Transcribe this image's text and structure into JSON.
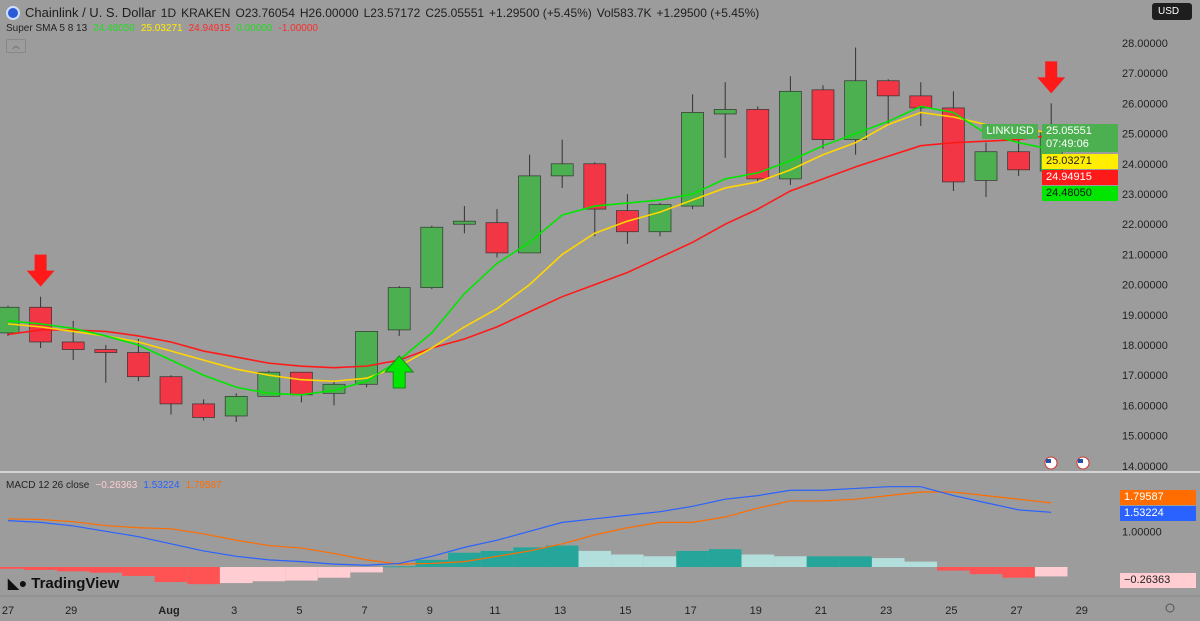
{
  "header": {
    "symbol": "Chainlink / U. S. Dollar",
    "interval": "1D",
    "exchange": "KRAKEN",
    "open": "O23.76054",
    "high": "H26.00000",
    "low": "L23.57172",
    "close": "C25.05551",
    "change": "+1.29500 (+5.45%)",
    "volume": "Vol583.7K",
    "change2": "+1.29500 (+5.45%)"
  },
  "indicator": {
    "name": "Super SMA 5 8 13",
    "values": [
      "24.48050",
      "25.03271",
      "24.94915",
      "0.00000",
      "-1.00000"
    ],
    "colors": [
      "#22dd22",
      "#ffee00",
      "#ff2a2a",
      "#22dd22",
      "#ff2a2a"
    ]
  },
  "macd_label": {
    "name": "MACD 12 26 close",
    "values": [
      "−0.26363",
      "1.53224",
      "1.79587"
    ],
    "colors": [
      "#ffcdd2",
      "#2962ff",
      "#ff6d00"
    ]
  },
  "currency_button": "USD",
  "price_tags": {
    "symbol": "LINKUSD",
    "last": "25.05551",
    "countdown": "07:49:06",
    "sma8": "25.03271",
    "sma13": "24.94915",
    "sma5": "24.48050",
    "macd_signal": "1.79587",
    "macd": "1.53224",
    "hist": "−0.26363"
  },
  "branding": "TradingView",
  "colors": {
    "up": "#4caf50",
    "down": "#f23645",
    "sma5": "#00e600",
    "sma8": "#ffd600",
    "sma13": "#ff1a1a",
    "macd": "#2962ff",
    "signal": "#ff6d00"
  },
  "chart_data": {
    "type": "candlestick",
    "price_axis": {
      "ticks": [
        "28.00000",
        "27.00000",
        "26.00000",
        "25.00000",
        "24.00000",
        "23.00000",
        "22.00000",
        "21.00000",
        "20.00000",
        "19.00000",
        "18.00000",
        "17.00000",
        "16.00000",
        "15.00000",
        "14.00000"
      ],
      "range": [
        14,
        28
      ]
    },
    "x_axis_labels": [
      "27",
      "29",
      "Aug",
      "3",
      "5",
      "7",
      "9",
      "11",
      "13",
      "15",
      "17",
      "19",
      "21",
      "23",
      "25",
      "27",
      "29"
    ],
    "dates": [
      "Jul 27",
      "Jul 28",
      "Jul 29",
      "Jul 30",
      "Jul 31",
      "Aug 1",
      "Aug 2",
      "Aug 3",
      "Aug 4",
      "Aug 5",
      "Aug 6",
      "Aug 7",
      "Aug 8",
      "Aug 9",
      "Aug 10",
      "Aug 11",
      "Aug 12",
      "Aug 13",
      "Aug 14",
      "Aug 15",
      "Aug 16",
      "Aug 17",
      "Aug 18",
      "Aug 19",
      "Aug 20",
      "Aug 21",
      "Aug 22",
      "Aug 23",
      "Aug 24",
      "Aug 25",
      "Aug 26",
      "Aug 27",
      "Aug 28"
    ],
    "ohlc": [
      [
        18.4,
        19.3,
        18.3,
        19.25
      ],
      [
        19.25,
        19.6,
        17.9,
        18.1
      ],
      [
        18.1,
        18.8,
        17.5,
        17.85
      ],
      [
        17.85,
        18.0,
        16.75,
        17.75
      ],
      [
        17.75,
        18.2,
        16.8,
        16.95
      ],
      [
        16.95,
        17.0,
        15.7,
        16.05
      ],
      [
        16.05,
        16.2,
        15.5,
        15.6
      ],
      [
        15.65,
        16.4,
        15.45,
        16.3
      ],
      [
        16.3,
        17.15,
        16.3,
        17.1
      ],
      [
        17.1,
        17.1,
        16.1,
        16.35
      ],
      [
        16.4,
        16.8,
        16.0,
        16.7
      ],
      [
        16.7,
        18.45,
        16.6,
        18.45
      ],
      [
        18.5,
        19.95,
        18.3,
        19.9
      ],
      [
        19.9,
        21.95,
        19.85,
        21.9
      ],
      [
        22.0,
        22.6,
        21.7,
        22.1
      ],
      [
        22.05,
        22.5,
        20.9,
        21.05
      ],
      [
        21.05,
        24.3,
        21.05,
        23.6
      ],
      [
        23.6,
        24.8,
        23.2,
        24.0
      ],
      [
        24.0,
        24.05,
        21.6,
        22.5
      ],
      [
        22.45,
        23.0,
        21.35,
        21.75
      ],
      [
        21.75,
        22.7,
        21.6,
        22.65
      ],
      [
        22.6,
        26.3,
        22.5,
        25.7
      ],
      [
        25.65,
        26.7,
        24.2,
        25.8
      ],
      [
        25.8,
        25.9,
        23.4,
        23.5
      ],
      [
        23.5,
        26.9,
        23.3,
        26.4
      ],
      [
        26.45,
        26.6,
        24.5,
        24.8
      ],
      [
        24.8,
        27.85,
        24.3,
        26.75
      ],
      [
        26.75,
        26.8,
        25.3,
        26.25
      ],
      [
        26.25,
        26.7,
        25.25,
        25.85
      ],
      [
        25.85,
        26.4,
        23.1,
        23.4
      ],
      [
        23.45,
        24.7,
        22.9,
        24.4
      ],
      [
        24.4,
        24.8,
        23.6,
        23.8
      ],
      [
        23.76054,
        26.0,
        23.57172,
        25.05551
      ]
    ],
    "sma5": [
      18.8,
      18.7,
      18.55,
      18.3,
      18.0,
      17.5,
      17.0,
      16.6,
      16.4,
      16.35,
      16.5,
      16.8,
      17.5,
      18.4,
      19.7,
      20.7,
      21.4,
      22.3,
      22.6,
      22.7,
      22.8,
      23.0,
      23.5,
      23.7,
      24.1,
      24.6,
      25.0,
      25.4,
      25.9,
      25.7,
      25.0,
      24.7,
      24.4805
    ],
    "sma8": [
      18.7,
      18.6,
      18.45,
      18.3,
      18.1,
      17.8,
      17.5,
      17.2,
      17.0,
      16.85,
      16.8,
      16.9,
      17.3,
      17.9,
      18.6,
      19.2,
      20.0,
      21.0,
      21.7,
      22.1,
      22.4,
      22.8,
      23.2,
      23.4,
      23.8,
      24.3,
      24.7,
      25.3,
      25.7,
      25.55,
      25.3,
      25.15,
      25.03271
    ],
    "sma13": [
      18.35,
      18.5,
      18.5,
      18.45,
      18.3,
      18.1,
      17.8,
      17.6,
      17.4,
      17.3,
      17.25,
      17.3,
      17.5,
      17.9,
      18.2,
      18.6,
      19.1,
      19.6,
      20.0,
      20.4,
      20.9,
      21.4,
      22.0,
      22.5,
      23.1,
      23.5,
      23.9,
      24.25,
      24.6,
      24.7,
      24.75,
      24.8,
      24.94915
    ],
    "signals": [
      {
        "date": "Jul 28",
        "type": "sell"
      },
      {
        "date": "Aug 8",
        "type": "buy"
      },
      {
        "date": "Aug 28",
        "type": "sell"
      }
    ],
    "macd_pane": {
      "axis_ticks": [
        "1.00000"
      ],
      "macd": [
        1.3,
        1.25,
        1.15,
        1.0,
        0.85,
        0.65,
        0.45,
        0.3,
        0.2,
        0.15,
        0.08,
        0.05,
        0.1,
        0.3,
        0.55,
        0.75,
        1.0,
        1.25,
        1.35,
        1.45,
        1.55,
        1.7,
        1.9,
        2.0,
        2.15,
        2.15,
        2.2,
        2.25,
        2.25,
        2.0,
        1.8,
        1.6,
        1.53224
      ],
      "histogram": [
        -0.05,
        -0.08,
        -0.12,
        -0.16,
        -0.25,
        -0.42,
        -0.48,
        -0.45,
        -0.4,
        -0.38,
        -0.3,
        -0.15,
        0.02,
        0.2,
        0.4,
        0.45,
        0.55,
        0.6,
        0.45,
        0.35,
        0.3,
        0.45,
        0.5,
        0.35,
        0.3,
        0.3,
        0.3,
        0.25,
        0.15,
        -0.1,
        -0.2,
        -0.3,
        -0.26363
      ]
    }
  }
}
